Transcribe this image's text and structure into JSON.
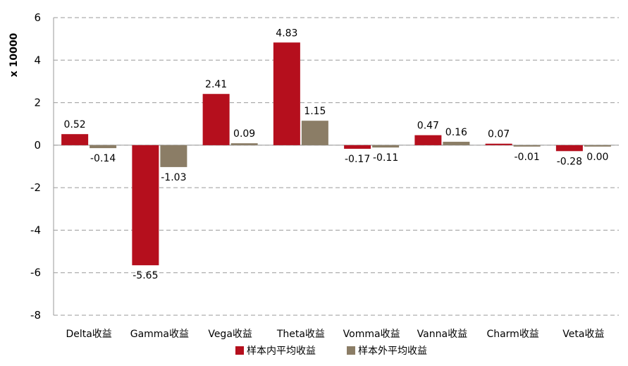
{
  "chart_data": {
    "type": "bar",
    "y_unit_label": "x 10000",
    "categories": [
      "Delta收益",
      "Gamma收益",
      "Vega收益",
      "Theta收益",
      "Vomma收益",
      "Vanna收益",
      "Charm收益",
      "Veta收益"
    ],
    "series": [
      {
        "name": "样本内平均收益",
        "color": "#b50f1d",
        "values": [
          0.52,
          -5.65,
          2.41,
          4.83,
          -0.17,
          0.47,
          0.07,
          -0.28
        ],
        "labels": [
          "0.52",
          "-5.65",
          "2.41",
          "4.83",
          "-0.17",
          "0.47",
          "0.07",
          "-0.28"
        ]
      },
      {
        "name": "样本外平均收益",
        "color": "#8b7d66",
        "values": [
          -0.14,
          -1.03,
          0.09,
          1.15,
          -0.11,
          0.16,
          -0.01,
          0.0
        ],
        "labels": [
          "-0.14",
          "-1.03",
          "0.09",
          "1.15",
          "-0.11",
          "0.16",
          "-0.01",
          "0.00"
        ]
      }
    ],
    "ylim": [
      -8,
      6
    ],
    "yticks": [
      6,
      4,
      2,
      0,
      -2,
      -4,
      -6,
      -8
    ],
    "grid": true,
    "legend_position": "bottom"
  }
}
